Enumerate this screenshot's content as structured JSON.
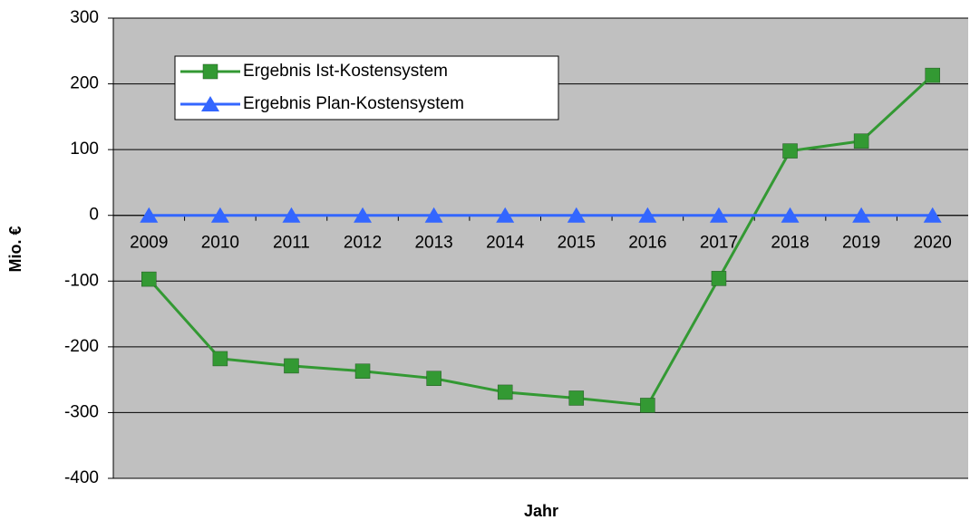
{
  "chart_data": {
    "type": "line",
    "x_label": "Jahr",
    "y_label": "Mio. €",
    "categories": [
      "2009",
      "2010",
      "2011",
      "2012",
      "2013",
      "2014",
      "2015",
      "2016",
      "2017",
      "2018",
      "2019",
      "2020"
    ],
    "series": [
      {
        "name": "Ergebnis Ist-Kostensystem",
        "color": "#339933",
        "marker": "square",
        "values": [
          -97,
          -218,
          -229,
          -237,
          -248,
          -269,
          -278,
          -289,
          -96,
          98,
          113,
          213
        ]
      },
      {
        "name": "Ergebnis Plan-Kostensystem",
        "color": "#3366ff",
        "marker": "triangle",
        "values": [
          0,
          0,
          0,
          0,
          0,
          0,
          0,
          0,
          0,
          0,
          0,
          0
        ]
      }
    ],
    "ylim": [
      -400,
      300
    ],
    "yticks": [
      -400,
      -300,
      -200,
      -100,
      0,
      100,
      200,
      300
    ],
    "grid": true,
    "legend": "upper left",
    "background": "#c0c0c0"
  }
}
